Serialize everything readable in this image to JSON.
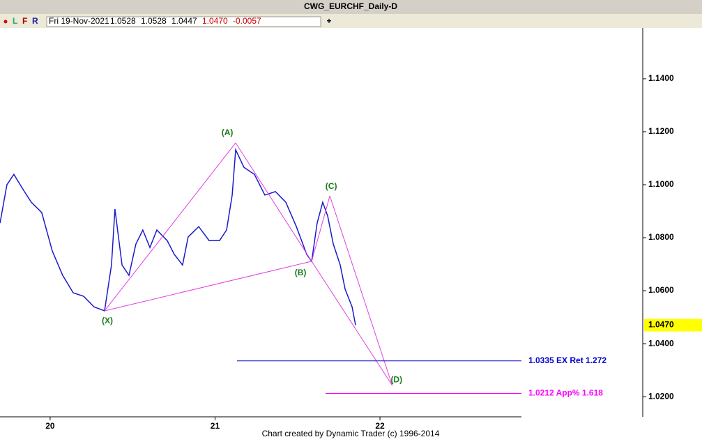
{
  "window_title": "CWG_EURCHF_Daily-D",
  "toolbar": {
    "buttons": [
      "L",
      "F",
      "R"
    ],
    "info": [
      "Fri 19-Nov-2021",
      "1.0528",
      "1.0528",
      "1.0447",
      "1.0470",
      "-0.0057"
    ],
    "add": "+"
  },
  "chart_data": {
    "type": "line",
    "x": [
      19.696,
      19.738,
      19.78,
      19.844,
      19.886,
      19.949,
      20.013,
      20.076,
      20.14,
      20.203,
      20.266,
      20.33,
      20.372,
      20.393,
      20.436,
      20.478,
      20.52,
      20.562,
      20.605,
      20.647,
      20.71,
      20.753,
      20.803,
      20.837,
      20.901,
      20.964,
      21.027,
      21.07,
      21.104,
      21.125,
      21.175,
      21.239,
      21.302,
      21.366,
      21.429,
      21.493,
      21.556,
      21.586,
      21.619,
      21.653,
      21.683,
      21.717,
      21.759,
      21.789,
      21.831,
      21.852
    ],
    "values": [
      1.0855,
      1.1,
      1.1039,
      1.0974,
      1.0934,
      1.0895,
      1.075,
      1.0658,
      1.0592,
      1.0579,
      1.0539,
      1.0524,
      1.0697,
      1.0908,
      1.0697,
      1.0658,
      1.0776,
      1.0829,
      1.0763,
      1.0829,
      1.0789,
      1.0737,
      1.0697,
      1.0803,
      1.0842,
      1.0789,
      1.0789,
      1.0829,
      1.0961,
      1.1132,
      1.1066,
      1.1039,
      1.0961,
      1.0974,
      1.0934,
      1.0842,
      1.0737,
      1.0711,
      1.0855,
      1.0934,
      1.0882,
      1.0776,
      1.0697,
      1.0605,
      1.0539,
      1.047
    ],
    "color": "#1a1acc",
    "xlim": [
      19.696,
      22.858
    ],
    "xticks": [
      20,
      21,
      22
    ],
    "ylim": [
      1.0124,
      1.1592
    ],
    "yticks": [
      {
        "value": 1.14,
        "label": "1.1400"
      },
      {
        "value": 1.12,
        "label": "1.1200"
      },
      {
        "value": 1.1,
        "label": "1.1000"
      },
      {
        "value": 1.08,
        "label": "1.0800"
      },
      {
        "value": 1.06,
        "label": "1.0600"
      },
      {
        "value": 1.04,
        "label": "1.0400"
      },
      {
        "value": 1.02,
        "label": "1.0200"
      }
    ],
    "pattern_color": "#e040e0",
    "pattern_label_color": "#1a7a1a",
    "pattern_points": [
      {
        "label": "(X)",
        "x": 20.33,
        "value": 1.0524
      },
      {
        "label": "(A)",
        "x": 21.125,
        "value": 1.1158
      },
      {
        "label": "(B)",
        "x": 21.586,
        "value": 1.0711
      },
      {
        "label": "(C)",
        "x": 21.696,
        "value": 1.0958
      },
      {
        "label": "(D)",
        "x": 22.075,
        "value": 1.0242
      }
    ],
    "levels": [
      {
        "value": 1.0335,
        "x": 21.133,
        "label": "1.0335 EX Ret 1.272",
        "color": "#0000cc"
      },
      {
        "value": 1.0212,
        "x": 21.67,
        "label": "1.0212 App% 1.618",
        "color": "#ff00ff"
      }
    ],
    "last_price": {
      "value": 1.047,
      "label": "1.0470"
    }
  },
  "footer": "Chart created by Dynamic Trader  (c) 1996-2014"
}
